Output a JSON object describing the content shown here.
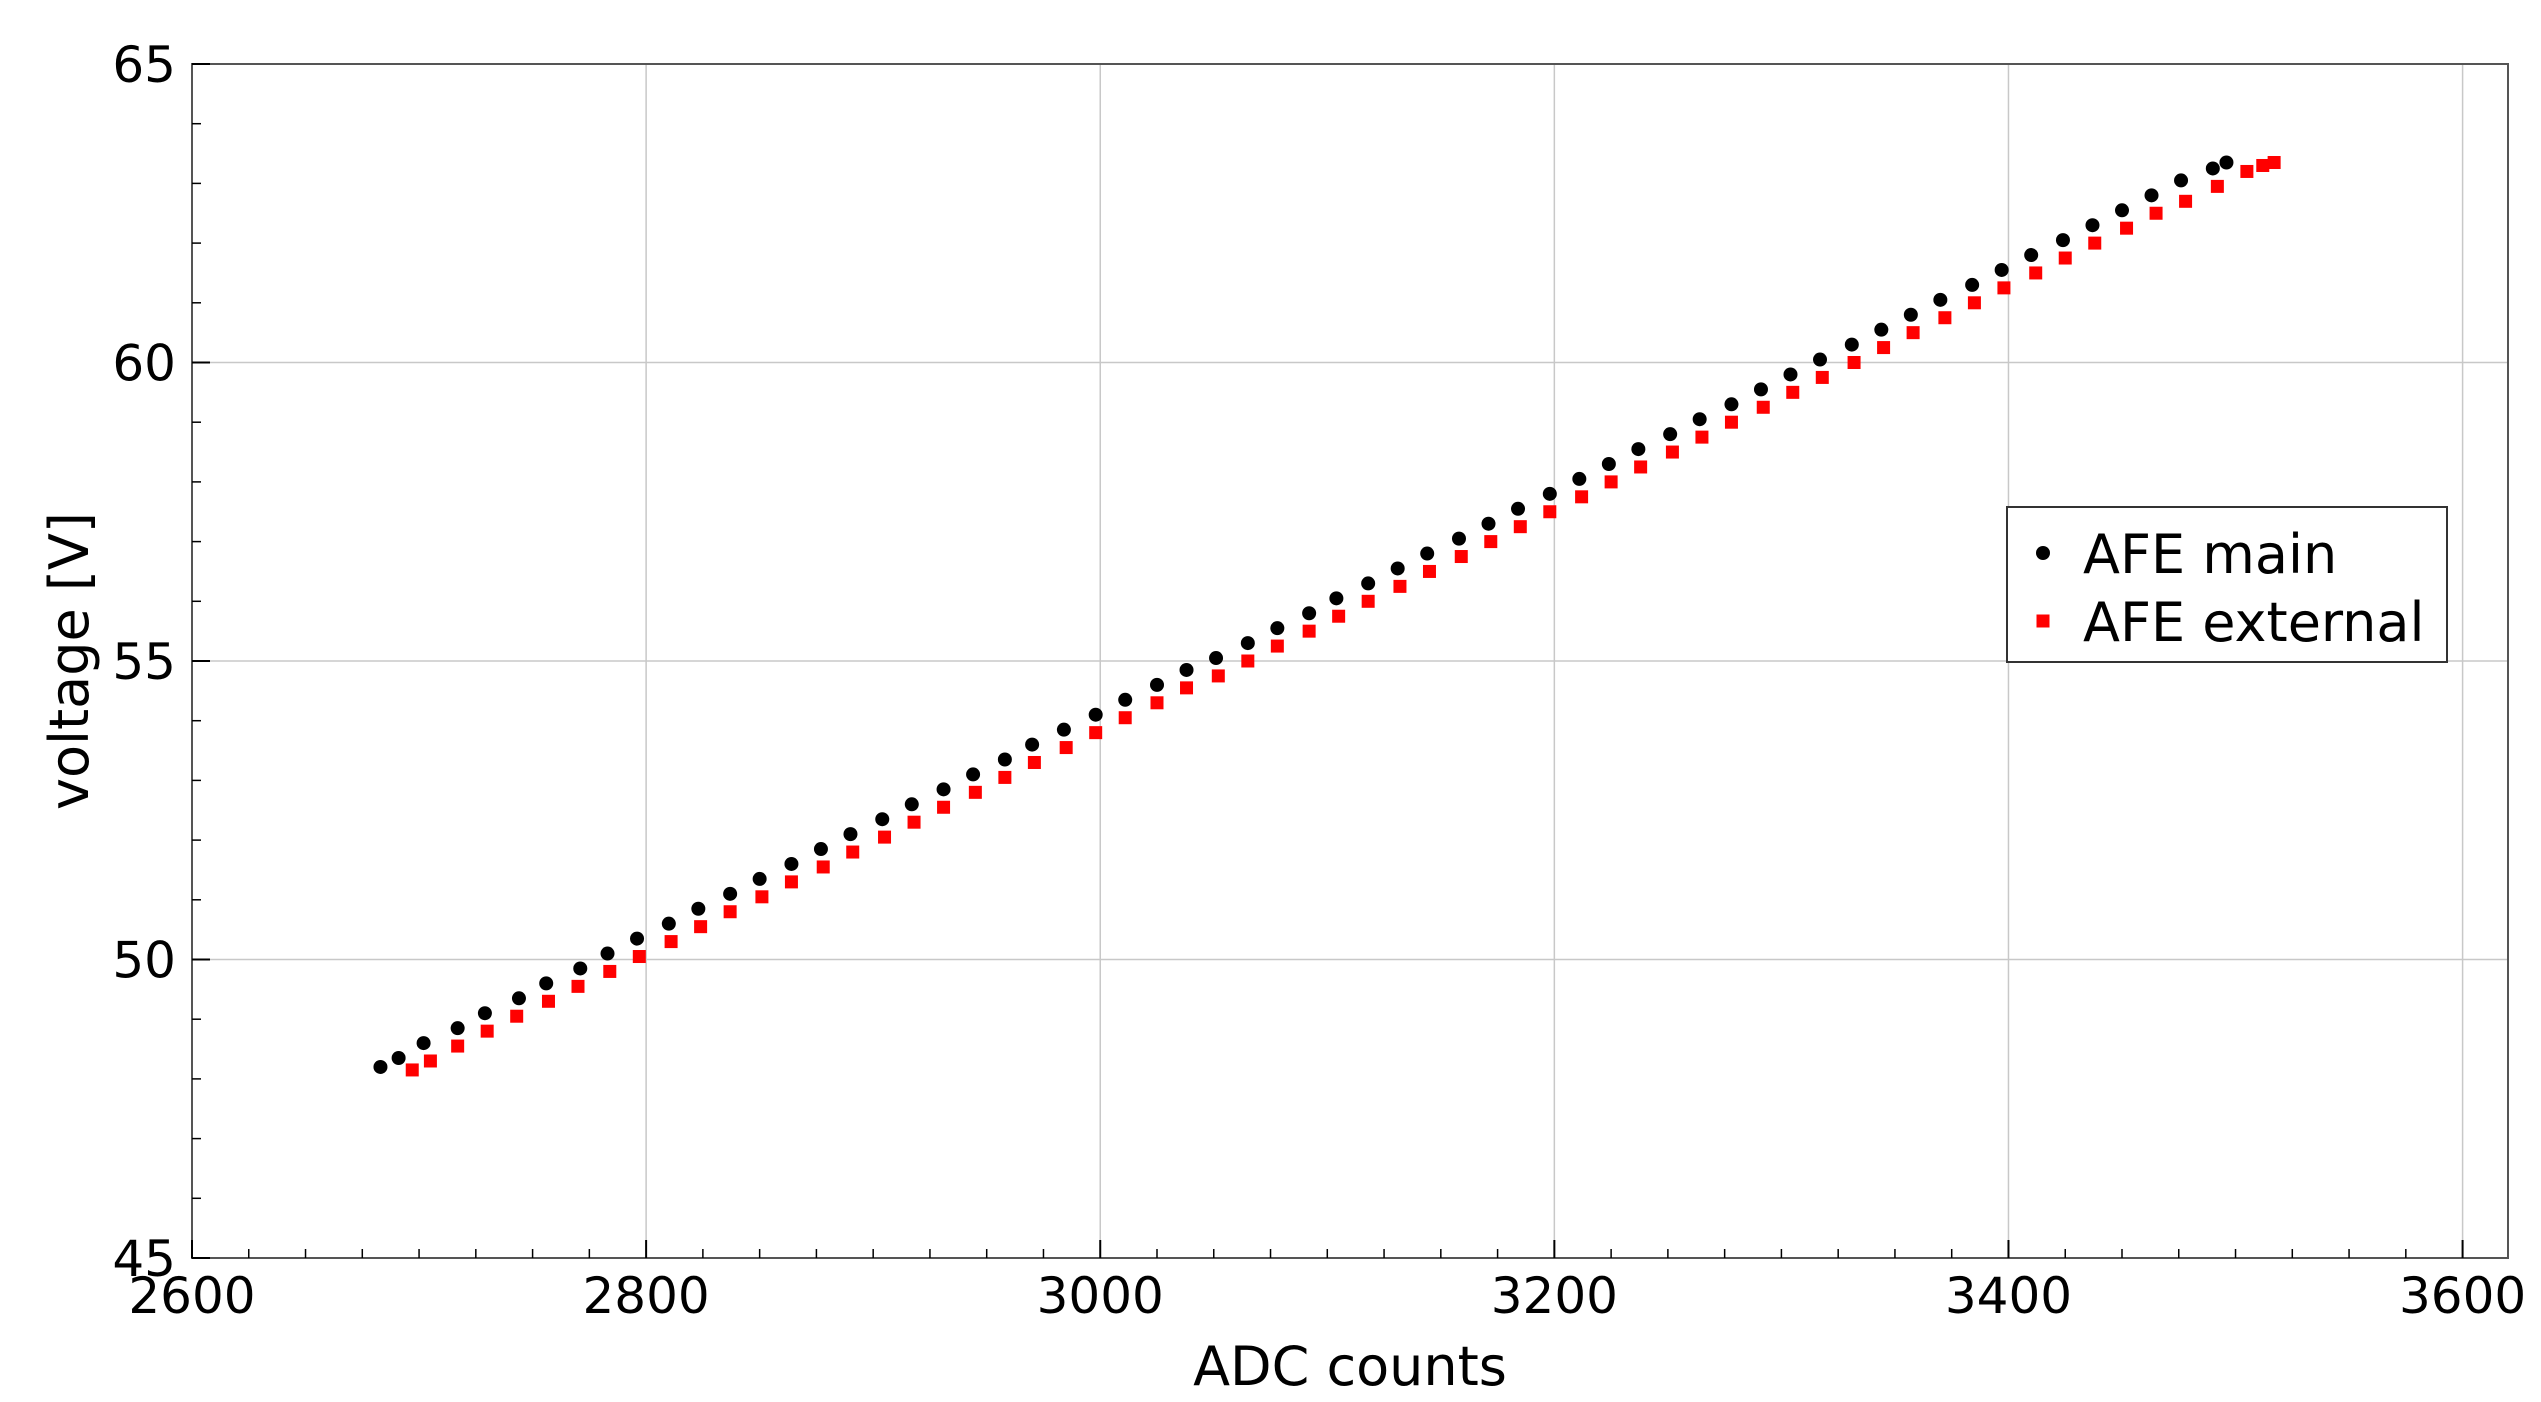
{
  "chart_data": {
    "type": "scatter",
    "xlabel": "ADC counts",
    "ylabel": "voltage [V]",
    "xlim": [
      2600,
      3620
    ],
    "ylim": [
      45,
      65
    ],
    "x_ticks": [
      2600,
      2800,
      3000,
      3200,
      3400,
      3600
    ],
    "y_ticks": [
      45,
      50,
      55,
      60,
      65
    ],
    "grid": true,
    "legend_position": "right",
    "series": [
      {
        "name": "AFE main",
        "color": "#000000",
        "marker": "circle",
        "x": [
          2683,
          2691,
          2702,
          2717,
          2729,
          2744,
          2756,
          2771,
          2783,
          2796,
          2810,
          2823,
          2837,
          2850,
          2864,
          2877,
          2890,
          2904,
          2917,
          2931,
          2944,
          2958,
          2970,
          2984,
          2998,
          3011,
          3025,
          3038,
          3051,
          3065,
          3078,
          3092,
          3104,
          3118,
          3131,
          3144,
          3158,
          3171,
          3184,
          3198,
          3211,
          3224,
          3237,
          3251,
          3264,
          3278,
          3291,
          3304,
          3317,
          3331,
          3344,
          3357,
          3370,
          3384,
          3397,
          3410,
          3424,
          3437,
          3450,
          3463,
          3476,
          3490,
          3496
        ],
        "y": [
          48.2,
          48.35,
          48.6,
          48.85,
          49.1,
          49.35,
          49.6,
          49.85,
          50.1,
          50.35,
          50.6,
          50.85,
          51.1,
          51.35,
          51.6,
          51.85,
          52.1,
          52.35,
          52.6,
          52.85,
          53.1,
          53.35,
          53.6,
          53.85,
          54.1,
          54.35,
          54.6,
          54.85,
          55.05,
          55.3,
          55.55,
          55.8,
          56.05,
          56.3,
          56.55,
          56.8,
          57.05,
          57.3,
          57.55,
          57.8,
          58.05,
          58.3,
          58.55,
          58.8,
          59.05,
          59.3,
          59.55,
          59.8,
          60.05,
          60.3,
          60.55,
          60.8,
          61.05,
          61.3,
          61.55,
          61.8,
          62.05,
          62.3,
          62.55,
          62.8,
          63.05,
          63.25,
          63.35
        ]
      },
      {
        "name": "AFE external",
        "color": "#ff0000",
        "marker": "square",
        "x": [
          2697,
          2705,
          2717,
          2730,
          2743,
          2757,
          2770,
          2784,
          2797,
          2811,
          2824,
          2837,
          2851,
          2864,
          2878,
          2891,
          2905,
          2918,
          2931,
          2945,
          2958,
          2971,
          2985,
          2998,
          3011,
          3025,
          3038,
          3052,
          3065,
          3078,
          3092,
          3105,
          3118,
          3132,
          3145,
          3159,
          3172,
          3185,
          3198,
          3212,
          3225,
          3238,
          3252,
          3265,
          3278,
          3292,
          3305,
          3318,
          3332,
          3345,
          3358,
          3372,
          3385,
          3398,
          3412,
          3425,
          3438,
          3452,
          3465,
          3478,
          3492,
          3505,
          3512,
          3517
        ],
        "y": [
          48.15,
          48.3,
          48.55,
          48.8,
          49.05,
          49.3,
          49.55,
          49.8,
          50.05,
          50.3,
          50.55,
          50.8,
          51.05,
          51.3,
          51.55,
          51.8,
          52.05,
          52.3,
          52.55,
          52.8,
          53.05,
          53.3,
          53.55,
          53.8,
          54.05,
          54.3,
          54.55,
          54.75,
          55.0,
          55.25,
          55.5,
          55.75,
          56.0,
          56.25,
          56.5,
          56.75,
          57.0,
          57.25,
          57.5,
          57.75,
          58.0,
          58.25,
          58.5,
          58.75,
          59.0,
          59.25,
          59.5,
          59.75,
          60.0,
          60.25,
          60.5,
          60.75,
          61.0,
          61.25,
          61.5,
          61.75,
          62.0,
          62.25,
          62.5,
          62.7,
          62.95,
          63.2,
          63.3,
          63.35
        ]
      }
    ]
  },
  "colors": {
    "grid": "#c8c8c8",
    "axis": "#000000"
  }
}
